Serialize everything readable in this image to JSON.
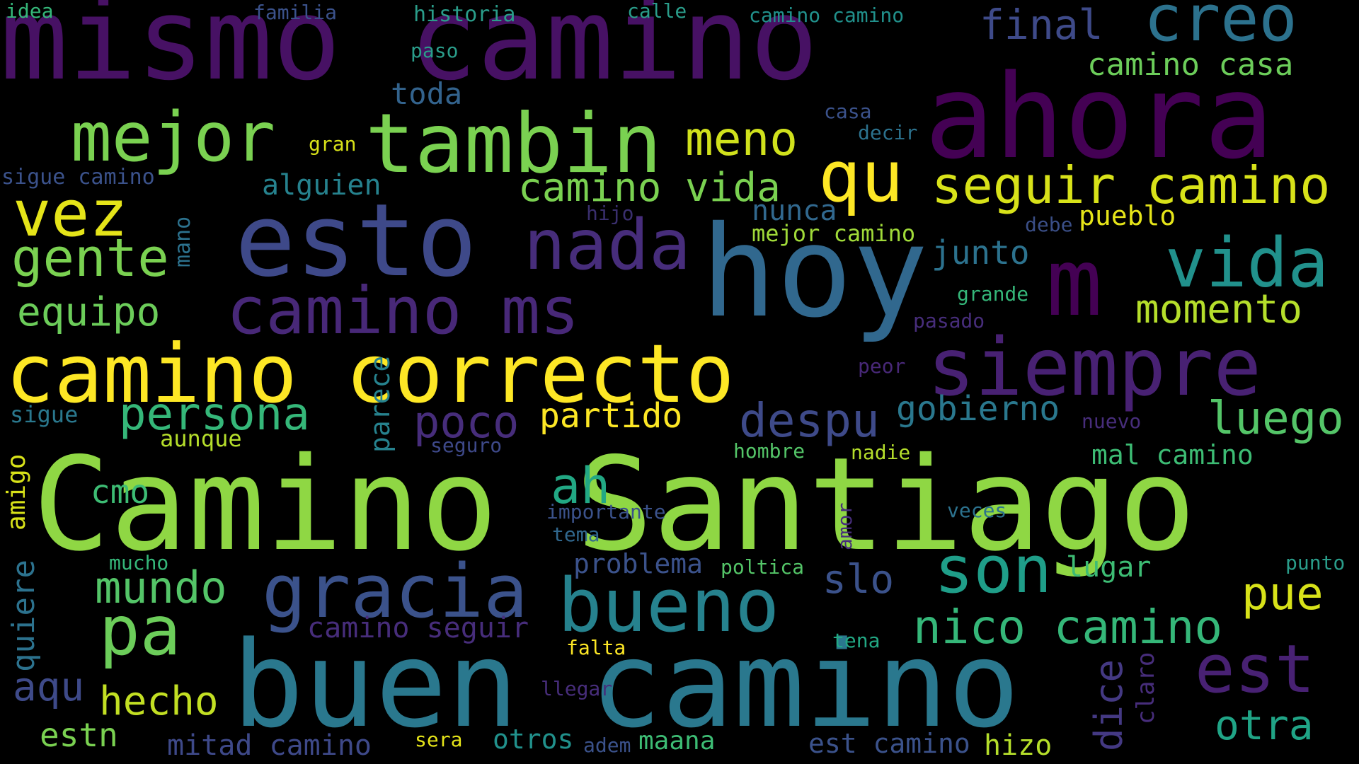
{
  "words": {
    "w000": "Camino Santiago",
    "w001": "buen camino",
    "w002": "mismo camino",
    "w003": "camino correcto",
    "w004": "hoy",
    "w005": "ahora",
    "w006": "esto",
    "w007": "siempre",
    "w008": "tambin",
    "w009": "m",
    "w010": "gracia",
    "w011": "vida",
    "w012": "bueno",
    "w013": "camino ms",
    "w014": "qu",
    "w015": "nada",
    "w016": "mejor",
    "w017": "creo",
    "w018": "son",
    "w019": "pa",
    "w020": "vez",
    "w021": "est",
    "w022": "seguir camino",
    "w023": "gente",
    "w024": "nico camino",
    "w025": "despu",
    "w026": "luego",
    "w027": "persona",
    "w028": "mundo",
    "w029": "ah",
    "w030": "meno",
    "w031": "final",
    "w032": "camino vida",
    "w033": "momento",
    "w034": "equipo",
    "w035": "pue",
    "w036": "hecho",
    "w037": "poco",
    "w038": "slo",
    "w039": "otra",
    "w040": "aqu",
    "w041": "partido",
    "w042": "gobierno",
    "w043": "dice",
    "w044": "camino casa",
    "w045": "junto",
    "w046": "estn",
    "w047": "cmo",
    "w048": "mitad camino",
    "w049": "toda",
    "w050": "camino seguir",
    "w051": "mal camino",
    "w052": "hizo",
    "w053": "est camino",
    "w054": "nunca",
    "w055": "otros",
    "w056": "maana",
    "w057": "problema",
    "w058": "lugar",
    "w059": "alguien",
    "w060": "quiere",
    "w061": "parece",
    "w062": "amigo",
    "w063": "pueblo",
    "w064": "mejor camino",
    "w065": "sigue camino",
    "w066": "aunque",
    "w067": "sigue",
    "w068": "claro",
    "w069": "historia",
    "w070": "familia",
    "w071": "calle",
    "w072": "camino camino",
    "w073": "idea",
    "w074": "paso",
    "w075": "gran",
    "w076": "casa",
    "w077": "decir",
    "w078": "hijo",
    "w079": "mano",
    "w080": "debe",
    "w081": "grande",
    "w082": "pasado",
    "w083": "peor",
    "w084": "nuevo",
    "w085": "seguro",
    "w086": "hombre",
    "w087": "nadie",
    "w088": "importante",
    "w089": "veces",
    "w090": "tema",
    "w091": "amor",
    "w092": "mucho",
    "w093": "poltica",
    "w094": "punto",
    "w095": "tena",
    "w096": "falta",
    "w097": "llegar",
    "w098": "sera",
    "w099": "adem"
  },
  "colors": {
    "background": "#000000",
    "c000": "#8fd744",
    "c001": "#2a788e",
    "c002": "#471164",
    "c003": "#fde725",
    "c004": "#31688e",
    "c005": "#440154",
    "c006": "#3e4989",
    "c007": "#482173",
    "c008": "#7ad151",
    "c009": "#440154",
    "c010": "#3b528b",
    "c011": "#21918c",
    "c012": "#26828e",
    "c013": "#482878",
    "c014": "#fde725",
    "c015": "#472d7b",
    "c016": "#7ad151",
    "c017": "#2c728e",
    "c018": "#1f9e89",
    "c019": "#6ccd5a",
    "c020": "#e5e419",
    "c021": "#482173",
    "c022": "#d8e219",
    "c023": "#7ad151",
    "c024": "#35b779",
    "c025": "#3e4a89",
    "c026": "#54c568",
    "c027": "#35b779",
    "c028": "#54c568",
    "c029": "#22a884",
    "c030": "#d0e11c",
    "c031": "#3e4a89",
    "c032": "#7ad151",
    "c033": "#b5de2b",
    "c034": "#6ccd5a",
    "c035": "#d8e219",
    "c036": "#c2df23",
    "c037": "#472d7b",
    "c038": "#3b528b",
    "c039": "#20a486",
    "c040": "#3e4a89",
    "c041": "#fde725",
    "c042": "#2a788e",
    "c043": "#443983",
    "c044": "#6ccd5a",
    "c045": "#2c728e",
    "c046": "#7ad151",
    "c047": "#3dbc74",
    "c048": "#3e4989",
    "c049": "#33638d",
    "c050": "#472d7b",
    "c051": "#3dbc74",
    "c052": "#b5de2b",
    "c053": "#3b528b",
    "c054": "#31688e",
    "c055": "#21918c",
    "c056": "#3dbc74",
    "c057": "#3b528b",
    "c058": "#3dbc74",
    "c059": "#26828e",
    "c060": "#2c728e",
    "c061": "#26828e",
    "c062": "#d8e219",
    "c063": "#e5e419",
    "c064": "#a0da39",
    "c065": "#3b528b",
    "c066": "#b5de2b",
    "c067": "#2a788e",
    "c068": "#472d7b",
    "c069": "#2a9d8a",
    "c070": "#3b528b",
    "c071": "#2a9d8a",
    "c072": "#21918c",
    "c073": "#35b779",
    "c074": "#2a9d8a",
    "c075": "#d8e219",
    "c076": "#3b528b",
    "c077": "#2c728e",
    "c078": "#3a2f6e",
    "c079": "#2c728e",
    "c080": "#3a4e86",
    "c081": "#35b779",
    "c082": "#472d7b",
    "c083": "#482878",
    "c084": "#472d7b",
    "c085": "#3e4989",
    "c086": "#54c568",
    "c087": "#b5de2b",
    "c088": "#3b528b",
    "c089": "#2c728e",
    "c090": "#31688e",
    "c091": "#472d7b",
    "c092": "#35b779",
    "c093": "#54c568",
    "c094": "#2a9d8a",
    "c095": "#22a884",
    "c096": "#fde725",
    "c097": "#472d7b",
    "c098": "#e5e419",
    "c099": "#3b528b"
  }
}
